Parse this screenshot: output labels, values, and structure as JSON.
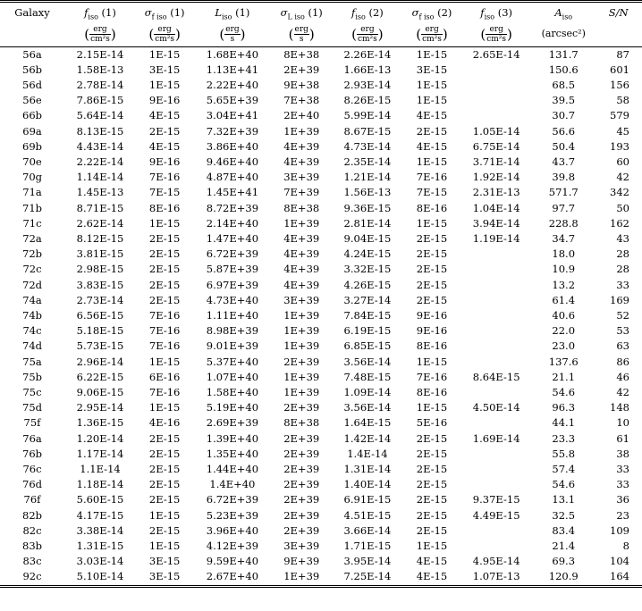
{
  "headers": [
    {
      "sym": "Galaxy",
      "sub": "",
      "tail": "",
      "unit_num": "",
      "unit_den": ""
    },
    {
      "sym": "f",
      "sub": "iso",
      "tail": " (1)",
      "unit_num": "erg",
      "unit_den": "cm²s"
    },
    {
      "sym": "σ",
      "sub": "f iso",
      "tail": " (1)",
      "unit_num": "erg",
      "unit_den": "cm²s"
    },
    {
      "sym": "L",
      "sub": "iso",
      "tail": " (1)",
      "unit_num": "erg",
      "unit_den": "s"
    },
    {
      "sym": "σ",
      "sub": "L iso",
      "tail": " (1)",
      "unit_num": "erg",
      "unit_den": "s"
    },
    {
      "sym": "f",
      "sub": "iso",
      "tail": " (2)",
      "unit_num": "erg",
      "unit_den": "cm²s"
    },
    {
      "sym": "σ",
      "sub": "f iso",
      "tail": " (2)",
      "unit_num": "erg",
      "unit_den": "cm²s"
    },
    {
      "sym": "f",
      "sub": "iso",
      "tail": " (3)",
      "unit_num": "erg",
      "unit_den": "cm²s"
    },
    {
      "sym": "A",
      "sub": "iso",
      "tail": "",
      "unit_plain": "(arcsec²)"
    },
    {
      "sym": "S/N",
      "sub": "",
      "tail": "",
      "unit_num": "",
      "unit_den": ""
    }
  ],
  "rows": [
    [
      "56a",
      "2.15E-14",
      "1E-15",
      "1.68E+40",
      "8E+38",
      "2.26E-14",
      "1E-15",
      "2.65E-14",
      "131.7",
      "87"
    ],
    [
      "56b",
      "1.58E-13",
      "3E-15",
      "1.13E+41",
      "2E+39",
      "1.66E-13",
      "3E-15",
      "",
      "150.6",
      "601"
    ],
    [
      "56d",
      "2.78E-14",
      "1E-15",
      "2.22E+40",
      "9E+38",
      "2.93E-14",
      "1E-15",
      "",
      "68.5",
      "156"
    ],
    [
      "56e",
      "7.86E-15",
      "9E-16",
      "5.65E+39",
      "7E+38",
      "8.26E-15",
      "1E-15",
      "",
      "39.5",
      "58"
    ],
    [
      "66b",
      "5.64E-14",
      "4E-15",
      "3.04E+41",
      "2E+40",
      "5.99E-14",
      "4E-15",
      "",
      "30.7",
      "579"
    ],
    [
      "69a",
      "8.13E-15",
      "2E-15",
      "7.32E+39",
      "1E+39",
      "8.67E-15",
      "2E-15",
      "1.05E-14",
      "56.6",
      "45"
    ],
    [
      "69b",
      "4.43E-14",
      "4E-15",
      "3.86E+40",
      "4E+39",
      "4.73E-14",
      "4E-15",
      "6.75E-14",
      "50.4",
      "193"
    ],
    [
      "70e",
      "2.22E-14",
      "9E-16",
      "9.46E+40",
      "4E+39",
      "2.35E-14",
      "1E-15",
      "3.71E-14",
      "43.7",
      "60"
    ],
    [
      "70g",
      "1.14E-14",
      "7E-16",
      "4.87E+40",
      "3E+39",
      "1.21E-14",
      "7E-16",
      "1.92E-14",
      "39.8",
      "42"
    ],
    [
      "71a",
      "1.45E-13",
      "7E-15",
      "1.45E+41",
      "7E+39",
      "1.56E-13",
      "7E-15",
      "2.31E-13",
      "571.7",
      "342"
    ],
    [
      "71b",
      "8.71E-15",
      "8E-16",
      "8.72E+39",
      "8E+38",
      "9.36E-15",
      "8E-16",
      "1.04E-14",
      "97.7",
      "50"
    ],
    [
      "71c",
      "2.62E-14",
      "1E-15",
      "2.14E+40",
      "1E+39",
      "2.81E-14",
      "1E-15",
      "3.94E-14",
      "228.8",
      "162"
    ],
    [
      "72a",
      "8.12E-15",
      "2E-15",
      "1.47E+40",
      "4E+39",
      "9.04E-15",
      "2E-15",
      "1.19E-14",
      "34.7",
      "43"
    ],
    [
      "72b",
      "3.81E-15",
      "2E-15",
      "6.72E+39",
      "4E+39",
      "4.24E-15",
      "2E-15",
      "",
      "18.0",
      "28"
    ],
    [
      "72c",
      "2.98E-15",
      "2E-15",
      "5.87E+39",
      "4E+39",
      "3.32E-15",
      "2E-15",
      "",
      "10.9",
      "28"
    ],
    [
      "72d",
      "3.83E-15",
      "2E-15",
      "6.97E+39",
      "4E+39",
      "4.26E-15",
      "2E-15",
      "",
      "13.2",
      "33"
    ],
    [
      "74a",
      "2.73E-14",
      "2E-15",
      "4.73E+40",
      "3E+39",
      "3.27E-14",
      "2E-15",
      "",
      "61.4",
      "169"
    ],
    [
      "74b",
      "6.56E-15",
      "7E-16",
      "1.11E+40",
      "1E+39",
      "7.84E-15",
      "9E-16",
      "",
      "40.6",
      "52"
    ],
    [
      "74c",
      "5.18E-15",
      "7E-16",
      "8.98E+39",
      "1E+39",
      "6.19E-15",
      "9E-16",
      "",
      "22.0",
      "53"
    ],
    [
      "74d",
      "5.73E-15",
      "7E-16",
      "9.01E+39",
      "1E+39",
      "6.85E-15",
      "8E-16",
      "",
      "23.0",
      "63"
    ],
    [
      "75a",
      "2.96E-14",
      "1E-15",
      "5.37E+40",
      "2E+39",
      "3.56E-14",
      "1E-15",
      "",
      "137.6",
      "86"
    ],
    [
      "75b",
      "6.22E-15",
      "6E-16",
      "1.07E+40",
      "1E+39",
      "7.48E-15",
      "7E-16",
      "8.64E-15",
      "21.1",
      "46"
    ],
    [
      "75c",
      "9.06E-15",
      "7E-16",
      "1.58E+40",
      "1E+39",
      "1.09E-14",
      "8E-16",
      "",
      "54.6",
      "42"
    ],
    [
      "75d",
      "2.95E-14",
      "1E-15",
      "5.19E+40",
      "2E+39",
      "3.56E-14",
      "1E-15",
      "4.50E-14",
      "96.3",
      "148"
    ],
    [
      "75f",
      "1.36E-15",
      "4E-16",
      "2.69E+39",
      "8E+38",
      "1.64E-15",
      "5E-16",
      "",
      "44.1",
      "10"
    ],
    [
      "76a",
      "1.20E-14",
      "2E-15",
      "1.39E+40",
      "2E+39",
      "1.42E-14",
      "2E-15",
      "1.69E-14",
      "23.3",
      "61"
    ],
    [
      "76b",
      "1.17E-14",
      "2E-15",
      "1.35E+40",
      "2E+39",
      "1.4E-14",
      "2E-15",
      "",
      "55.8",
      "38"
    ],
    [
      "76c",
      "1.1E-14",
      "2E-15",
      "1.44E+40",
      "2E+39",
      "1.31E-14",
      "2E-15",
      "",
      "57.4",
      "33"
    ],
    [
      "76d",
      "1.18E-14",
      "2E-15",
      "1.4E+40",
      "2E+39",
      "1.40E-14",
      "2E-15",
      "",
      "54.6",
      "33"
    ],
    [
      "76f",
      "5.60E-15",
      "2E-15",
      "6.72E+39",
      "2E+39",
      "6.91E-15",
      "2E-15",
      "9.37E-15",
      "13.1",
      "36"
    ],
    [
      "82b",
      "4.17E-15",
      "1E-15",
      "5.23E+39",
      "2E+39",
      "4.51E-15",
      "2E-15",
      "4.49E-15",
      "32.5",
      "23"
    ],
    [
      "82c",
      "3.38E-14",
      "2E-15",
      "3.96E+40",
      "2E+39",
      "3.66E-14",
      "2E-15",
      "",
      "83.4",
      "109"
    ],
    [
      "83b",
      "1.31E-15",
      "1E-15",
      "4.12E+39",
      "3E+39",
      "1.71E-15",
      "1E-15",
      "",
      "21.4",
      "8"
    ],
    [
      "83c",
      "3.03E-14",
      "3E-15",
      "9.59E+40",
      "9E+39",
      "3.95E-14",
      "4E-15",
      "4.95E-14",
      "69.3",
      "104"
    ],
    [
      "92c",
      "5.10E-14",
      "3E-15",
      "2.67E+40",
      "1E+39",
      "7.25E-14",
      "4E-15",
      "1.07E-13",
      "120.9",
      "164"
    ]
  ]
}
